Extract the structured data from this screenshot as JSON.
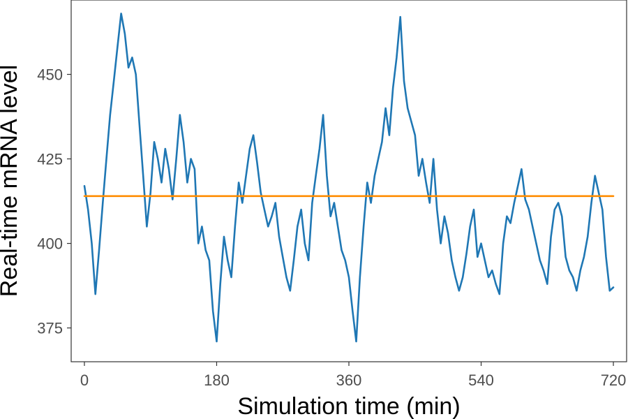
{
  "chart_data": {
    "type": "line",
    "title": "",
    "xlabel": "Simulation time (min)",
    "ylabel": "Real-time mRNA level",
    "xlim": [
      -18,
      738
    ],
    "ylim": [
      365,
      472
    ],
    "x_ticks": [
      0,
      180,
      360,
      540,
      720
    ],
    "x_tick_labels": [
      "0",
      "180",
      "360",
      "540",
      "720"
    ],
    "y_ticks": [
      375,
      400,
      425,
      450
    ],
    "y_tick_labels": [
      "375",
      "400",
      "425",
      "450"
    ],
    "grid": false,
    "legend": "none",
    "series": [
      {
        "color": "#1f77b4",
        "x": [
          0,
          5,
          10,
          15,
          20,
          25,
          30,
          35,
          40,
          45,
          50,
          55,
          60,
          65,
          70,
          75,
          80,
          85,
          90,
          95,
          100,
          105,
          110,
          115,
          120,
          125,
          130,
          135,
          140,
          145,
          150,
          155,
          160,
          165,
          170,
          175,
          180,
          185,
          190,
          195,
          200,
          205,
          210,
          215,
          220,
          225,
          230,
          235,
          240,
          245,
          250,
          255,
          260,
          265,
          270,
          275,
          280,
          285,
          290,
          295,
          300,
          305,
          310,
          315,
          320,
          325,
          330,
          335,
          340,
          345,
          350,
          355,
          360,
          365,
          370,
          375,
          380,
          385,
          390,
          395,
          400,
          405,
          410,
          415,
          420,
          425,
          430,
          435,
          440,
          445,
          450,
          455,
          460,
          465,
          470,
          475,
          480,
          485,
          490,
          495,
          500,
          505,
          510,
          515,
          520,
          525,
          530,
          535,
          540,
          545,
          550,
          555,
          560,
          565,
          570,
          575,
          580,
          585,
          590,
          595,
          600,
          605,
          610,
          615,
          620,
          625,
          630,
          635,
          640,
          645,
          650,
          655,
          660,
          665,
          670,
          675,
          680,
          685,
          690,
          695,
          700,
          705,
          710,
          715,
          720
        ],
        "values": [
          417,
          410,
          400,
          385,
          398,
          412,
          425,
          438,
          448,
          458,
          468,
          462,
          452,
          455,
          450,
          435,
          420,
          405,
          415,
          430,
          425,
          418,
          428,
          422,
          413,
          425,
          438,
          430,
          418,
          425,
          422,
          400,
          405,
          398,
          395,
          380,
          371,
          388,
          402,
          395,
          390,
          405,
          418,
          412,
          420,
          428,
          432,
          424,
          415,
          410,
          405,
          408,
          412,
          402,
          396,
          390,
          386,
          395,
          405,
          410,
          400,
          395,
          412,
          420,
          428,
          438,
          420,
          408,
          412,
          405,
          398,
          395,
          390,
          380,
          371,
          390,
          405,
          418,
          412,
          420,
          425,
          430,
          440,
          432,
          446,
          455,
          467,
          448,
          440,
          436,
          432,
          420,
          425,
          418,
          412,
          425,
          410,
          400,
          408,
          403,
          395,
          390,
          386,
          390,
          397,
          405,
          410,
          396,
          400,
          395,
          390,
          392,
          388,
          385,
          400,
          408,
          406,
          412,
          417,
          422,
          413,
          410,
          405,
          400,
          395,
          392,
          388,
          402,
          410,
          412,
          408,
          396,
          392,
          390,
          386,
          392,
          396,
          402,
          412,
          420,
          415,
          410,
          396,
          386,
          387
        ]
      },
      {
        "color": "#ff8c00",
        "x": [
          0,
          720
        ],
        "values": [
          414,
          414
        ]
      }
    ]
  }
}
